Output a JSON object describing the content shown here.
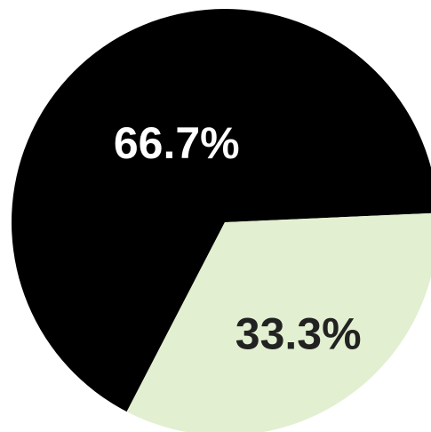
{
  "chart_data": {
    "type": "pie",
    "slices": [
      {
        "value": 66.7,
        "label": "66.7%",
        "color": "#000000",
        "label_color": "#ffffff"
      },
      {
        "value": 33.3,
        "label": "33.3%",
        "color": "#e2efd0",
        "label_color": "#222222"
      }
    ]
  }
}
